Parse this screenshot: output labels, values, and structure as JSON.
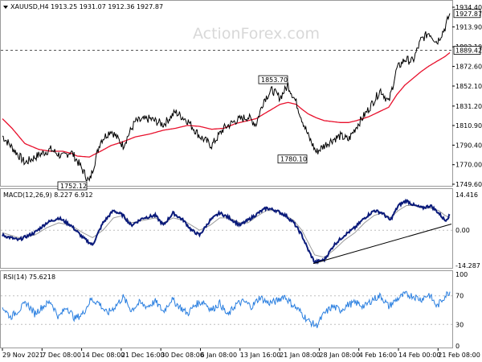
{
  "colors": {
    "price": "#000000",
    "ma": "#e8102c",
    "macd": "#0a1a7a",
    "signal": "#9a9a9a",
    "rsi": "#2a7fe0",
    "grid": "#bfbfbf",
    "trendline": "#000000"
  },
  "watermark": "ActionForex.com",
  "main": {
    "header": "XAUUSD,H4  1913.25 1931.07 1912.36 1927.87",
    "header_icon": "triangle-down-icon",
    "yticks": [
      "1934.40",
      "1913.90",
      "1893.10",
      "1872.60",
      "1852.10",
      "1831.20",
      "1810.90",
      "1790.40",
      "1770.00",
      "1749.60"
    ],
    "current_tag": "1927.87",
    "level_tag": "1889.42",
    "annotations": [
      {
        "label": "1853.70",
        "value": 1853.7
      },
      {
        "label": "1780.10",
        "value": 1780.1
      },
      {
        "label": "1752.12",
        "value": 1752.12
      }
    ]
  },
  "macd_panel": {
    "header": "MACD(12,26,9) 8.227 6.912",
    "yticks": [
      "14.416",
      "0.00",
      "-14.287"
    ]
  },
  "rsi_panel": {
    "header": "RSI(14) 75.6218",
    "yticks": [
      "100",
      "70",
      "30",
      "0"
    ]
  },
  "xaxis": {
    "labels": [
      "29 Nov 2021",
      "7 Dec 08:00",
      "14 Dec 08:00",
      "21 Dec 16:00",
      "30 Dec 08:00",
      "6 Jan 08:00",
      "13 Jan 16:00",
      "21 Jan 08:00",
      "28 Jan 08:00",
      "4 Feb 16:00",
      "14 Feb 00:00",
      "21 Feb 08:00"
    ]
  },
  "chart_data": [
    {
      "type": "line",
      "title": "XAUUSD,H4  1913.25 1931.07 1912.36 1927.87",
      "ylim": [
        1749.6,
        1934.4
      ],
      "anchors_x": [
        0,
        12,
        28,
        45,
        60,
        75,
        85,
        93,
        108,
        122,
        135,
        150,
        165,
        183,
        200,
        215,
        230,
        245,
        260,
        275,
        290,
        305,
        315,
        325,
        335,
        345,
        355,
        365,
        372,
        380,
        390,
        400,
        410,
        420,
        430,
        440,
        455,
        470,
        480,
        490,
        500,
        510,
        520,
        530,
        540,
        550,
        556
      ],
      "price_anchors": [
        1800,
        1788,
        1772,
        1780,
        1786,
        1778,
        1784,
        1774,
        1752,
        1795,
        1806,
        1790,
        1815,
        1818,
        1812,
        1825,
        1816,
        1800,
        1790,
        1808,
        1816,
        1820,
        1812,
        1838,
        1848,
        1840,
        1853,
        1835,
        1818,
        1800,
        1783,
        1790,
        1796,
        1800,
        1796,
        1810,
        1828,
        1848,
        1835,
        1870,
        1880,
        1878,
        1900,
        1908,
        1898,
        1913,
        1928
      ],
      "ma_anchors": [
        1818,
        1808,
        1792,
        1786,
        1784,
        1784,
        1782,
        1779,
        1778,
        1784,
        1790,
        1794,
        1799,
        1802,
        1806,
        1808,
        1811,
        1810,
        1807,
        1808,
        1813,
        1816,
        1818,
        1823,
        1828,
        1833,
        1835,
        1833,
        1828,
        1823,
        1819,
        1816,
        1815,
        1814,
        1814,
        1816,
        1820,
        1826,
        1830,
        1843,
        1853,
        1860,
        1867,
        1873,
        1878,
        1883,
        1887
      ],
      "series": [
        {
          "name": "XAUUSD,H4"
        }
      ]
    },
    {
      "type": "line",
      "title": "MACD(12,26,9) 8.227 6.912",
      "ylim": [
        -14.287,
        14.416
      ],
      "anchors_x": [
        0,
        20,
        40,
        55,
        70,
        85,
        100,
        112,
        125,
        138,
        150,
        160,
        175,
        190,
        200,
        212,
        225,
        235,
        245,
        258,
        270,
        282,
        295,
        305,
        318,
        328,
        340,
        352,
        362,
        372,
        380,
        388,
        400,
        412,
        425,
        438,
        450,
        462,
        472,
        482,
        492,
        502,
        512,
        522,
        532,
        542,
        550,
        556
      ],
      "macd_anchors": [
        -2,
        -4,
        -1,
        3,
        5,
        2,
        -3,
        -6,
        3,
        8,
        6,
        2,
        5,
        6,
        2,
        7,
        4,
        0,
        -2,
        4,
        7,
        5,
        2,
        4,
        7,
        9,
        8,
        6,
        3,
        -2,
        -8,
        -13,
        -12,
        -6,
        -2,
        1,
        5,
        8,
        7,
        4,
        10,
        12,
        10,
        9,
        10,
        7,
        4,
        6
      ],
      "signal_anchors": [
        -1,
        -3,
        -2,
        1,
        3,
        2,
        -1,
        -3,
        0,
        5,
        6,
        3,
        4,
        5,
        3,
        5,
        4,
        2,
        0,
        2,
        5,
        5,
        3,
        3,
        6,
        8,
        8,
        6,
        4,
        0,
        -5,
        -10,
        -11,
        -8,
        -4,
        -1,
        3,
        6,
        7,
        5,
        8,
        10,
        10,
        9,
        9,
        8,
        6,
        5
      ],
      "series": [
        {
          "name": "MACD(12,26,9)"
        }
      ]
    },
    {
      "type": "line",
      "title": "RSI(14) 75.6218",
      "ylim": [
        0,
        100
      ],
      "anchors_x": [
        0,
        10,
        20,
        30,
        40,
        50,
        60,
        70,
        80,
        90,
        100,
        110,
        120,
        130,
        140,
        150,
        160,
        170,
        180,
        190,
        200,
        210,
        220,
        230,
        240,
        250,
        260,
        270,
        280,
        290,
        300,
        310,
        320,
        330,
        340,
        350,
        360,
        370,
        380,
        390,
        400,
        410,
        420,
        430,
        440,
        450,
        460,
        470,
        480,
        490,
        500,
        510,
        520,
        530,
        540,
        550,
        556
      ],
      "rsi_anchors": [
        55,
        40,
        50,
        60,
        45,
        55,
        62,
        40,
        55,
        38,
        45,
        65,
        60,
        45,
        55,
        68,
        50,
        60,
        55,
        62,
        48,
        65,
        55,
        45,
        58,
        62,
        50,
        60,
        42,
        58,
        62,
        55,
        68,
        60,
        62,
        70,
        58,
        48,
        35,
        28,
        45,
        55,
        50,
        58,
        60,
        55,
        65,
        70,
        55,
        65,
        72,
        70,
        65,
        72,
        55,
        70,
        76
      ],
      "series": [
        {
          "name": "RSI(14)"
        }
      ]
    }
  ]
}
